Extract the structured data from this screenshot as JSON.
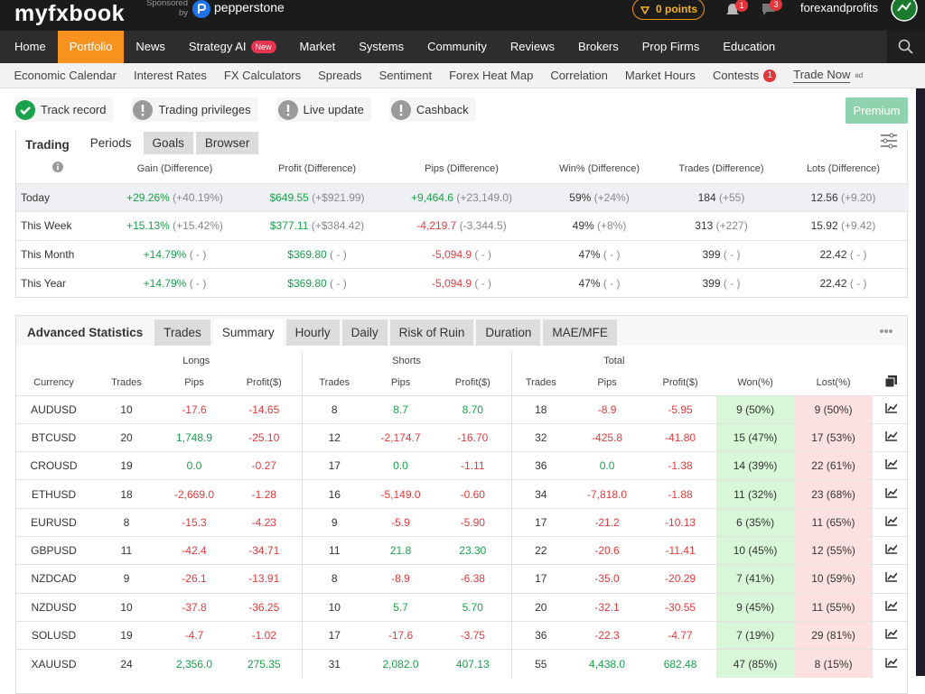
{
  "header": {
    "logo": "myfxbook",
    "sponsored": "Sponsored by",
    "broker": "pepperstone",
    "points": "0 points",
    "notifications": "1",
    "messages": "3",
    "username": "forexandprofits"
  },
  "nav": {
    "items": [
      "Home",
      "Portfolio",
      "News",
      "Strategy AI",
      "Market",
      "Systems",
      "Community",
      "Reviews",
      "Brokers",
      "Prop Firms",
      "Education"
    ],
    "badge": "New"
  },
  "subnav": {
    "items": [
      "Economic Calendar",
      "Interest Rates",
      "FX Calculators",
      "Spreads",
      "Sentiment",
      "Forex Heat Map",
      "Correlation",
      "Market Hours",
      "Contests",
      "Trade Now"
    ],
    "contests_badge": "1",
    "ad": "ad"
  },
  "status": {
    "items": [
      "Track record",
      "Trading privileges",
      "Live update",
      "Cashback"
    ],
    "premium": "Premium"
  },
  "periods": {
    "tabs": [
      "Trading",
      "Periods",
      "Goals",
      "Browser"
    ],
    "headers": [
      "Gain (Difference)",
      "Profit (Difference)",
      "Pips (Difference)",
      "Win% (Difference)",
      "Trades (Difference)",
      "Lots (Difference)"
    ],
    "rows": [
      {
        "label": "Today",
        "cells": [
          [
            "+29.26%",
            "(+40.19%)"
          ],
          [
            "$649.55",
            "(+$921.99)"
          ],
          [
            "+9,464.6",
            "(+23,149.0)"
          ],
          [
            "59%",
            "(+24%)"
          ],
          [
            "184",
            "(+55)"
          ],
          [
            "12.56",
            "(+9.20)"
          ]
        ]
      },
      {
        "label": "This Week",
        "cells": [
          [
            "+15.13%",
            "(+15.42%)"
          ],
          [
            "$377.11",
            "(+$384.42)"
          ],
          [
            "-4,219.7",
            "(-3,344.5)"
          ],
          [
            "49%",
            "(+8%)"
          ],
          [
            "313",
            "(+227)"
          ],
          [
            "15.92",
            "(+9.42)"
          ]
        ]
      },
      {
        "label": "This Month",
        "cells": [
          [
            "+14.79%",
            "( - )"
          ],
          [
            "$369.80",
            "( - )"
          ],
          [
            "-5,094.9",
            "( - )"
          ],
          [
            "47%",
            "( - )"
          ],
          [
            "399",
            "( - )"
          ],
          [
            "22.42",
            "( - )"
          ]
        ]
      },
      {
        "label": "This Year",
        "cells": [
          [
            "+14.79%",
            "( - )"
          ],
          [
            "$369.80",
            "( - )"
          ],
          [
            "-5,094.9",
            "( - )"
          ],
          [
            "47%",
            "( - )"
          ],
          [
            "399",
            "( - )"
          ],
          [
            "22.42",
            "( - )"
          ]
        ]
      }
    ]
  },
  "stats": {
    "tabs": [
      "Advanced Statistics",
      "Trades",
      "Summary",
      "Hourly",
      "Daily",
      "Risk of Ruin",
      "Duration",
      "MAE/MFE"
    ],
    "groups": [
      "Longs",
      "Shorts",
      "Total"
    ],
    "columns": [
      "Currency",
      "Trades",
      "Pips",
      "Profit($)",
      "Trades",
      "Pips",
      "Profit($)",
      "Trades",
      "Pips",
      "Profit($)",
      "Won(%)",
      "Lost(%)"
    ],
    "rows": [
      [
        "AUDUSD",
        "10",
        "-17.6",
        "-14.65",
        "8",
        "8.7",
        "8.70",
        "18",
        "-8.9",
        "-5.95",
        "9 (50%)",
        "9 (50%)"
      ],
      [
        "BTCUSD",
        "20",
        "1,748.9",
        "-25.10",
        "12",
        "-2,174.7",
        "-16.70",
        "32",
        "-425.8",
        "-41.80",
        "15 (47%)",
        "17 (53%)"
      ],
      [
        "CROUSD",
        "19",
        "0.0",
        "-0.27",
        "17",
        "0.0",
        "-1.11",
        "36",
        "0.0",
        "-1.38",
        "14 (39%)",
        "22 (61%)"
      ],
      [
        "ETHUSD",
        "18",
        "-2,669.0",
        "-1.28",
        "16",
        "-5,149.0",
        "-0.60",
        "34",
        "-7,818.0",
        "-1.88",
        "11 (32%)",
        "23 (68%)"
      ],
      [
        "EURUSD",
        "8",
        "-15.3",
        "-4.23",
        "9",
        "-5.9",
        "-5.90",
        "17",
        "-21.2",
        "-10.13",
        "6 (35%)",
        "11 (65%)"
      ],
      [
        "GBPUSD",
        "11",
        "-42.4",
        "-34.71",
        "11",
        "21.8",
        "23.30",
        "22",
        "-20.6",
        "-11.41",
        "10 (45%)",
        "12 (55%)"
      ],
      [
        "NZDCAD",
        "9",
        "-26.1",
        "-13.91",
        "8",
        "-8.9",
        "-6.38",
        "17",
        "-35.0",
        "-20.29",
        "7 (41%)",
        "10 (59%)"
      ],
      [
        "NZDUSD",
        "10",
        "-37.8",
        "-36.25",
        "10",
        "5.7",
        "5.70",
        "20",
        "-32.1",
        "-30.55",
        "9 (45%)",
        "11 (55%)"
      ],
      [
        "SOLUSD",
        "19",
        "-4.7",
        "-1.02",
        "17",
        "-17.6",
        "-3.75",
        "36",
        "-22.3",
        "-4.77",
        "7 (19%)",
        "29 (81%)"
      ],
      [
        "XAUUSD",
        "24",
        "2,356.0",
        "275.35",
        "31",
        "2,082.0",
        "407.13",
        "55",
        "4,438.0",
        "682.48",
        "47 (85%)",
        "8 (15%)"
      ]
    ]
  }
}
